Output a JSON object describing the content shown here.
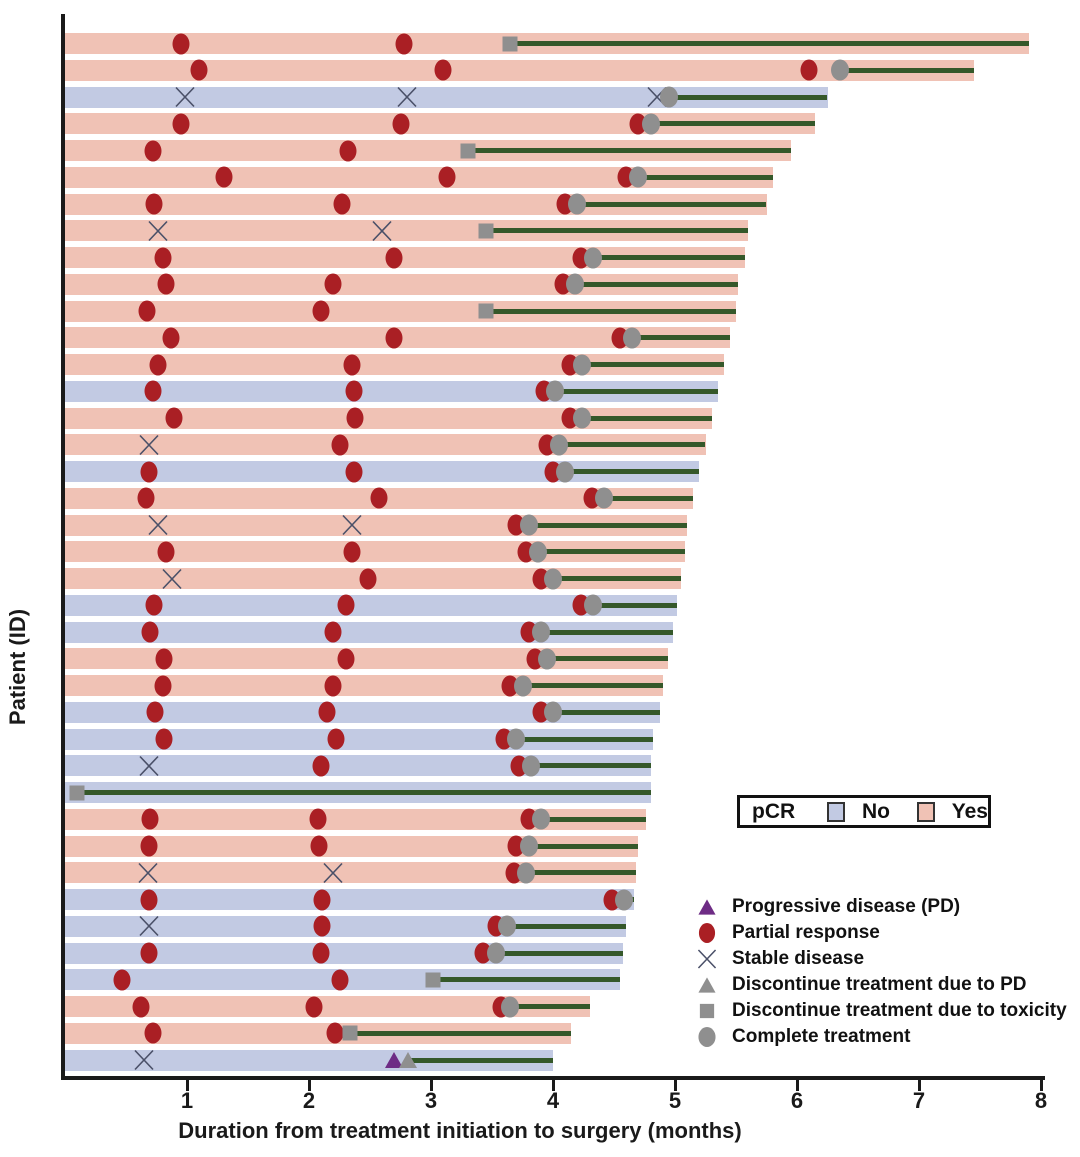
{
  "colors": {
    "pcr_yes": "#f0c2b5",
    "pcr_no": "#c2cae3",
    "partial_response": "#aa1f24",
    "gray_marker": "#8f8f8f",
    "line_green": "#35582a",
    "progressive_purple": "#6e2c85",
    "stable_x": "#4a5068",
    "axis": "#1a1a1a"
  },
  "axes": {
    "x_label": "Duration from treatment initiation to surgery (months)",
    "y_label": "Patient (ID)",
    "x_ticks": [
      1,
      2,
      3,
      4,
      5,
      6,
      7,
      8
    ],
    "x_max": 8
  },
  "pcr_legend": {
    "title": "pCR",
    "items": [
      {
        "label": "No",
        "color_key": "pcr_no"
      },
      {
        "label": "Yes",
        "color_key": "pcr_yes"
      }
    ]
  },
  "marker_legend": [
    {
      "type": "PD",
      "label": "Progressive disease (PD)"
    },
    {
      "type": "PR",
      "label": "Partial response"
    },
    {
      "type": "SD",
      "label": "Stable disease"
    },
    {
      "type": "pd",
      "label": "Discontinue treatment due to PD"
    },
    {
      "type": "toxicity",
      "label": "Discontinue treatment due to toxicity"
    },
    {
      "type": "complete",
      "label": "Complete treatment"
    }
  ],
  "chart_data": {
    "type": "swimmer-bar",
    "x_unit": "months",
    "x_range": [
      0,
      8
    ],
    "event_types": {
      "PR": "partial response (red circle)",
      "SD": "stable disease (x)",
      "PD": "progressive disease (purple triangle)",
      "toxicity": "discontinue treatment due to toxicity (gray square)",
      "pd": "discontinue treatment due to PD (gray triangle)",
      "complete": "complete treatment (gray circle)"
    },
    "patients": [
      {
        "pcr": "Yes",
        "surgery": 7.9,
        "end": {
          "t": 3.65,
          "type": "toxicity"
        },
        "events": [
          [
            0.95,
            "PR"
          ],
          [
            2.78,
            "PR"
          ]
        ]
      },
      {
        "pcr": "Yes",
        "surgery": 7.45,
        "end": {
          "t": 6.35,
          "type": "complete"
        },
        "events": [
          [
            1.1,
            "PR"
          ],
          [
            3.1,
            "PR"
          ],
          [
            6.1,
            "PR"
          ]
        ]
      },
      {
        "pcr": "No",
        "surgery": 6.25,
        "end": {
          "t": 4.95,
          "type": "complete"
        },
        "events": [
          [
            0.98,
            "SD"
          ],
          [
            2.8,
            "SD"
          ],
          [
            4.85,
            "SD"
          ]
        ]
      },
      {
        "pcr": "Yes",
        "surgery": 6.15,
        "end": {
          "t": 4.8,
          "type": "complete"
        },
        "events": [
          [
            0.95,
            "PR"
          ],
          [
            2.75,
            "PR"
          ],
          [
            4.7,
            "PR"
          ]
        ]
      },
      {
        "pcr": "Yes",
        "surgery": 5.95,
        "end": {
          "t": 3.3,
          "type": "toxicity"
        },
        "events": [
          [
            0.72,
            "PR"
          ],
          [
            2.32,
            "PR"
          ]
        ]
      },
      {
        "pcr": "Yes",
        "surgery": 5.8,
        "end": {
          "t": 4.7,
          "type": "complete"
        },
        "events": [
          [
            1.3,
            "PR"
          ],
          [
            3.13,
            "PR"
          ],
          [
            4.6,
            "PR"
          ]
        ]
      },
      {
        "pcr": "Yes",
        "surgery": 5.75,
        "end": {
          "t": 4.2,
          "type": "complete"
        },
        "events": [
          [
            0.73,
            "PR"
          ],
          [
            2.27,
            "PR"
          ],
          [
            4.1,
            "PR"
          ]
        ]
      },
      {
        "pcr": "Yes",
        "surgery": 5.6,
        "end": {
          "t": 3.45,
          "type": "toxicity"
        },
        "events": [
          [
            0.76,
            "SD"
          ],
          [
            2.6,
            "SD"
          ]
        ]
      },
      {
        "pcr": "Yes",
        "surgery": 5.57,
        "end": {
          "t": 4.33,
          "type": "complete"
        },
        "events": [
          [
            0.8,
            "PR"
          ],
          [
            2.7,
            "PR"
          ],
          [
            4.23,
            "PR"
          ]
        ]
      },
      {
        "pcr": "Yes",
        "surgery": 5.52,
        "end": {
          "t": 4.18,
          "type": "complete"
        },
        "events": [
          [
            0.83,
            "PR"
          ],
          [
            2.2,
            "PR"
          ],
          [
            4.08,
            "PR"
          ]
        ]
      },
      {
        "pcr": "Yes",
        "surgery": 5.5,
        "end": {
          "t": 3.45,
          "type": "toxicity"
        },
        "events": [
          [
            0.67,
            "PR"
          ],
          [
            2.1,
            "PR"
          ]
        ]
      },
      {
        "pcr": "Yes",
        "surgery": 5.45,
        "end": {
          "t": 4.65,
          "type": "complete"
        },
        "events": [
          [
            0.87,
            "PR"
          ],
          [
            2.7,
            "PR"
          ],
          [
            4.55,
            "PR"
          ]
        ]
      },
      {
        "pcr": "Yes",
        "surgery": 5.4,
        "end": {
          "t": 4.24,
          "type": "complete"
        },
        "events": [
          [
            0.76,
            "PR"
          ],
          [
            2.35,
            "PR"
          ],
          [
            4.14,
            "PR"
          ]
        ]
      },
      {
        "pcr": "No",
        "surgery": 5.35,
        "end": {
          "t": 4.02,
          "type": "complete"
        },
        "events": [
          [
            0.72,
            "PR"
          ],
          [
            2.37,
            "PR"
          ],
          [
            3.93,
            "PR"
          ]
        ]
      },
      {
        "pcr": "Yes",
        "surgery": 5.3,
        "end": {
          "t": 4.24,
          "type": "complete"
        },
        "events": [
          [
            0.89,
            "PR"
          ],
          [
            2.38,
            "PR"
          ],
          [
            4.14,
            "PR"
          ]
        ]
      },
      {
        "pcr": "Yes",
        "surgery": 5.25,
        "end": {
          "t": 4.05,
          "type": "complete"
        },
        "events": [
          [
            0.69,
            "SD"
          ],
          [
            2.25,
            "PR"
          ],
          [
            3.95,
            "PR"
          ]
        ]
      },
      {
        "pcr": "No",
        "surgery": 5.2,
        "end": {
          "t": 4.1,
          "type": "complete"
        },
        "events": [
          [
            0.69,
            "PR"
          ],
          [
            2.37,
            "PR"
          ],
          [
            4.0,
            "PR"
          ]
        ]
      },
      {
        "pcr": "Yes",
        "surgery": 5.15,
        "end": {
          "t": 4.42,
          "type": "complete"
        },
        "events": [
          [
            0.66,
            "PR"
          ],
          [
            2.57,
            "PR"
          ],
          [
            4.32,
            "PR"
          ]
        ]
      },
      {
        "pcr": "Yes",
        "surgery": 5.1,
        "end": {
          "t": 3.8,
          "type": "complete"
        },
        "events": [
          [
            0.76,
            "SD"
          ],
          [
            2.35,
            "SD"
          ],
          [
            3.7,
            "PR"
          ]
        ]
      },
      {
        "pcr": "Yes",
        "surgery": 5.08,
        "end": {
          "t": 3.88,
          "type": "complete"
        },
        "events": [
          [
            0.83,
            "PR"
          ],
          [
            2.35,
            "PR"
          ],
          [
            3.78,
            "PR"
          ]
        ]
      },
      {
        "pcr": "Yes",
        "surgery": 5.05,
        "end": {
          "t": 4.0,
          "type": "complete"
        },
        "events": [
          [
            0.88,
            "SD"
          ],
          [
            2.48,
            "PR"
          ],
          [
            3.9,
            "PR"
          ]
        ]
      },
      {
        "pcr": "No",
        "surgery": 5.02,
        "end": {
          "t": 4.33,
          "type": "complete"
        },
        "events": [
          [
            0.73,
            "PR"
          ],
          [
            2.3,
            "PR"
          ],
          [
            4.23,
            "PR"
          ]
        ]
      },
      {
        "pcr": "No",
        "surgery": 4.98,
        "end": {
          "t": 3.9,
          "type": "complete"
        },
        "events": [
          [
            0.7,
            "PR"
          ],
          [
            2.2,
            "PR"
          ],
          [
            3.8,
            "PR"
          ]
        ]
      },
      {
        "pcr": "Yes",
        "surgery": 4.94,
        "end": {
          "t": 3.95,
          "type": "complete"
        },
        "events": [
          [
            0.81,
            "PR"
          ],
          [
            2.3,
            "PR"
          ],
          [
            3.85,
            "PR"
          ]
        ]
      },
      {
        "pcr": "Yes",
        "surgery": 4.9,
        "end": {
          "t": 3.75,
          "type": "complete"
        },
        "events": [
          [
            0.8,
            "PR"
          ],
          [
            2.2,
            "PR"
          ],
          [
            3.65,
            "PR"
          ]
        ]
      },
      {
        "pcr": "No",
        "surgery": 4.88,
        "end": {
          "t": 4.0,
          "type": "complete"
        },
        "events": [
          [
            0.74,
            "PR"
          ],
          [
            2.15,
            "PR"
          ],
          [
            3.9,
            "PR"
          ]
        ]
      },
      {
        "pcr": "No",
        "surgery": 4.82,
        "end": {
          "t": 3.7,
          "type": "complete"
        },
        "events": [
          [
            0.81,
            "PR"
          ],
          [
            2.22,
            "PR"
          ],
          [
            3.6,
            "PR"
          ]
        ]
      },
      {
        "pcr": "No",
        "surgery": 4.8,
        "end": {
          "t": 3.82,
          "type": "complete"
        },
        "events": [
          [
            0.69,
            "SD"
          ],
          [
            2.1,
            "PR"
          ],
          [
            3.72,
            "PR"
          ]
        ]
      },
      {
        "pcr": "No",
        "surgery": 4.8,
        "end": {
          "t": 0.1,
          "type": "toxicity"
        },
        "events": []
      },
      {
        "pcr": "Yes",
        "surgery": 4.76,
        "end": {
          "t": 3.9,
          "type": "complete"
        },
        "events": [
          [
            0.7,
            "PR"
          ],
          [
            2.07,
            "PR"
          ],
          [
            3.8,
            "PR"
          ]
        ]
      },
      {
        "pcr": "Yes",
        "surgery": 4.7,
        "end": {
          "t": 3.8,
          "type": "complete"
        },
        "events": [
          [
            0.69,
            "PR"
          ],
          [
            2.08,
            "PR"
          ],
          [
            3.7,
            "PR"
          ]
        ]
      },
      {
        "pcr": "Yes",
        "surgery": 4.68,
        "end": {
          "t": 3.78,
          "type": "complete"
        },
        "events": [
          [
            0.68,
            "SD"
          ],
          [
            2.2,
            "SD"
          ],
          [
            3.68,
            "PR"
          ]
        ]
      },
      {
        "pcr": "No",
        "surgery": 4.66,
        "end": {
          "t": 4.58,
          "type": "complete"
        },
        "events": [
          [
            0.69,
            "PR"
          ],
          [
            2.11,
            "PR"
          ],
          [
            4.48,
            "PR"
          ]
        ]
      },
      {
        "pcr": "No",
        "surgery": 4.6,
        "end": {
          "t": 3.62,
          "type": "complete"
        },
        "events": [
          [
            0.69,
            "SD"
          ],
          [
            2.11,
            "PR"
          ],
          [
            3.53,
            "PR"
          ]
        ]
      },
      {
        "pcr": "No",
        "surgery": 4.57,
        "end": {
          "t": 3.53,
          "type": "complete"
        },
        "events": [
          [
            0.69,
            "PR"
          ],
          [
            2.1,
            "PR"
          ],
          [
            3.43,
            "PR"
          ]
        ]
      },
      {
        "pcr": "No",
        "surgery": 4.55,
        "end": {
          "t": 3.02,
          "type": "toxicity"
        },
        "events": [
          [
            0.47,
            "PR"
          ],
          [
            2.25,
            "PR"
          ]
        ]
      },
      {
        "pcr": "Yes",
        "surgery": 4.3,
        "end": {
          "t": 3.65,
          "type": "complete"
        },
        "events": [
          [
            0.62,
            "PR"
          ],
          [
            2.04,
            "PR"
          ],
          [
            3.57,
            "PR"
          ]
        ]
      },
      {
        "pcr": "Yes",
        "surgery": 4.15,
        "end": {
          "t": 2.34,
          "type": "toxicity"
        },
        "events": [
          [
            0.72,
            "PR"
          ],
          [
            2.21,
            "PR"
          ]
        ]
      },
      {
        "pcr": "No",
        "surgery": 4.0,
        "end": {
          "t": 2.81,
          "type": "pd"
        },
        "events": [
          [
            0.65,
            "SD"
          ],
          [
            2.7,
            "PD"
          ]
        ]
      }
    ]
  }
}
